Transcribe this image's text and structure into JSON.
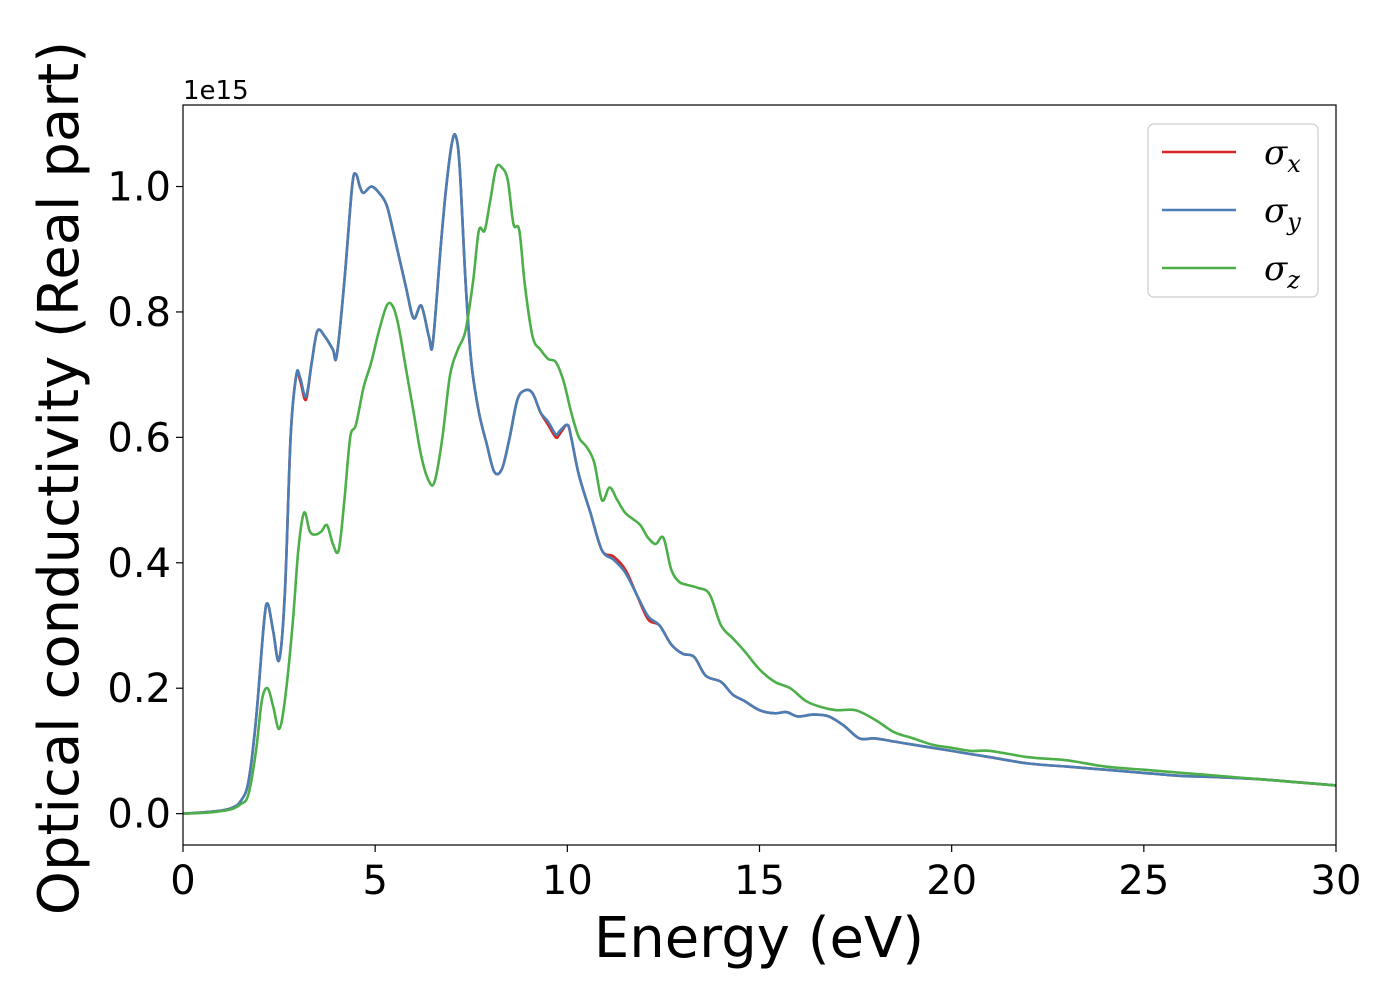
{
  "chart_data": {
    "type": "line",
    "title": "",
    "xlabel": "Energy (eV)",
    "ylabel": "Optical conductivity (Real part)",
    "y_offset_label": "1e15",
    "xlim": [
      0,
      30
    ],
    "ylim": [
      -0.05,
      1.13
    ],
    "xticks": [
      0,
      5,
      10,
      15,
      20,
      25,
      30
    ],
    "xtick_labels": [
      "0",
      "5",
      "10",
      "15",
      "20",
      "25",
      "30"
    ],
    "yticks": [
      0.0,
      0.2,
      0.4,
      0.6,
      0.8,
      1.0
    ],
    "ytick_labels": [
      "0.0",
      "0.2",
      "0.4",
      "0.6",
      "0.8",
      "1.0"
    ],
    "grid": false,
    "legend_position": "top-right",
    "series": [
      {
        "name": "σx",
        "legend_symbol": "σ",
        "legend_subscript": "x",
        "color": "#d62728",
        "x": [
          0,
          0.5,
          1,
          1.3,
          1.5,
          1.7,
          1.9,
          2.1,
          2.2,
          2.35,
          2.5,
          2.65,
          2.8,
          2.95,
          3.05,
          3.2,
          3.35,
          3.5,
          3.7,
          3.9,
          4.0,
          4.2,
          4.4,
          4.5,
          4.6,
          4.7,
          4.9,
          5.1,
          5.3,
          5.5,
          5.8,
          6.0,
          6.2,
          6.4,
          6.5,
          6.7,
          6.85,
          7.0,
          7.1,
          7.2,
          7.35,
          7.5,
          7.7,
          7.9,
          8.1,
          8.3,
          8.5,
          8.7,
          8.9,
          9.1,
          9.3,
          9.5,
          9.7,
          9.8,
          10.0,
          10.1,
          10.3,
          10.6,
          10.9,
          11.2,
          11.5,
          11.8,
          12.1,
          12.4,
          12.7,
          13.0,
          13.3,
          13.6,
          14.0,
          14.3,
          14.6,
          15.0,
          15.4,
          15.7,
          16.0,
          16.4,
          16.8,
          17.2,
          17.6,
          18.0,
          18.5,
          19.0,
          19.5,
          20.0,
          20.5,
          21.0,
          22.0,
          23.0,
          24.0,
          25.0,
          26.0,
          27.0,
          28.0,
          29.0,
          30.0
        ],
        "y": [
          0,
          0.002,
          0.005,
          0.01,
          0.02,
          0.05,
          0.15,
          0.3,
          0.335,
          0.29,
          0.245,
          0.35,
          0.6,
          0.7,
          0.69,
          0.66,
          0.72,
          0.77,
          0.76,
          0.74,
          0.73,
          0.85,
          1.0,
          1.02,
          1.0,
          0.99,
          1.0,
          0.99,
          0.97,
          0.92,
          0.84,
          0.79,
          0.81,
          0.76,
          0.75,
          0.9,
          1.0,
          1.07,
          1.08,
          1.03,
          0.85,
          0.72,
          0.64,
          0.59,
          0.545,
          0.55,
          0.6,
          0.66,
          0.675,
          0.67,
          0.64,
          0.62,
          0.6,
          0.605,
          0.62,
          0.6,
          0.54,
          0.48,
          0.42,
          0.41,
          0.39,
          0.35,
          0.31,
          0.3,
          0.27,
          0.255,
          0.25,
          0.22,
          0.21,
          0.19,
          0.18,
          0.165,
          0.16,
          0.162,
          0.155,
          0.158,
          0.155,
          0.14,
          0.12,
          0.12,
          0.115,
          0.11,
          0.105,
          0.1,
          0.095,
          0.09,
          0.08,
          0.075,
          0.07,
          0.065,
          0.06,
          0.058,
          0.055,
          0.05,
          0.045
        ]
      },
      {
        "name": "σy",
        "legend_symbol": "σ",
        "legend_subscript": "y",
        "color": "#4a7fb5",
        "x": [
          0,
          0.5,
          1,
          1.3,
          1.5,
          1.7,
          1.9,
          2.1,
          2.2,
          2.35,
          2.5,
          2.65,
          2.8,
          2.95,
          3.05,
          3.2,
          3.35,
          3.5,
          3.7,
          3.9,
          4.0,
          4.2,
          4.4,
          4.5,
          4.6,
          4.7,
          4.9,
          5.1,
          5.3,
          5.5,
          5.8,
          6.0,
          6.2,
          6.4,
          6.5,
          6.7,
          6.85,
          7.0,
          7.1,
          7.2,
          7.35,
          7.5,
          7.7,
          7.9,
          8.1,
          8.3,
          8.5,
          8.7,
          8.9,
          9.1,
          9.3,
          9.5,
          9.7,
          9.8,
          10.0,
          10.1,
          10.3,
          10.6,
          10.9,
          11.2,
          11.5,
          11.8,
          12.1,
          12.4,
          12.7,
          13.0,
          13.3,
          13.6,
          14.0,
          14.3,
          14.6,
          15.0,
          15.4,
          15.7,
          16.0,
          16.4,
          16.8,
          17.2,
          17.6,
          18.0,
          18.5,
          19.0,
          19.5,
          20.0,
          20.5,
          21.0,
          22.0,
          23.0,
          24.0,
          25.0,
          26.0,
          27.0,
          28.0,
          29.0,
          30.0
        ],
        "y": [
          0,
          0.002,
          0.005,
          0.01,
          0.02,
          0.05,
          0.15,
          0.3,
          0.335,
          0.29,
          0.245,
          0.35,
          0.6,
          0.7,
          0.695,
          0.665,
          0.72,
          0.77,
          0.76,
          0.74,
          0.73,
          0.85,
          1.0,
          1.02,
          1.0,
          0.99,
          1.0,
          0.99,
          0.97,
          0.92,
          0.84,
          0.79,
          0.81,
          0.76,
          0.75,
          0.9,
          1.0,
          1.07,
          1.08,
          1.03,
          0.85,
          0.72,
          0.64,
          0.59,
          0.545,
          0.55,
          0.6,
          0.66,
          0.675,
          0.67,
          0.64,
          0.625,
          0.605,
          0.61,
          0.62,
          0.6,
          0.54,
          0.48,
          0.42,
          0.405,
          0.385,
          0.35,
          0.315,
          0.3,
          0.27,
          0.255,
          0.25,
          0.22,
          0.21,
          0.19,
          0.18,
          0.165,
          0.16,
          0.162,
          0.155,
          0.158,
          0.155,
          0.14,
          0.12,
          0.12,
          0.115,
          0.11,
          0.105,
          0.1,
          0.095,
          0.09,
          0.08,
          0.075,
          0.07,
          0.065,
          0.06,
          0.058,
          0.055,
          0.05,
          0.045
        ]
      },
      {
        "name": "σz",
        "legend_symbol": "σ",
        "legend_subscript": "z",
        "color": "#4daf4a",
        "x": [
          0,
          0.5,
          1,
          1.3,
          1.5,
          1.7,
          1.9,
          2.05,
          2.2,
          2.35,
          2.5,
          2.65,
          2.85,
          3.0,
          3.15,
          3.3,
          3.45,
          3.6,
          3.75,
          3.9,
          4.05,
          4.2,
          4.35,
          4.5,
          4.7,
          4.9,
          5.1,
          5.3,
          5.45,
          5.6,
          5.8,
          6.0,
          6.2,
          6.4,
          6.55,
          6.75,
          6.95,
          7.15,
          7.35,
          7.55,
          7.7,
          7.85,
          8.0,
          8.15,
          8.3,
          8.45,
          8.6,
          8.75,
          8.9,
          9.1,
          9.3,
          9.5,
          9.7,
          9.9,
          10.1,
          10.3,
          10.5,
          10.7,
          10.9,
          11.1,
          11.3,
          11.5,
          11.7,
          11.9,
          12.1,
          12.3,
          12.5,
          12.7,
          12.9,
          13.1,
          13.4,
          13.7,
          14.0,
          14.3,
          14.6,
          15.0,
          15.4,
          15.8,
          16.2,
          16.6,
          17.0,
          17.5,
          18.0,
          18.5,
          19.0,
          19.5,
          20.0,
          20.5,
          21.0,
          22.0,
          23.0,
          24.0,
          25.0,
          26.0,
          27.0,
          28.0,
          29.0,
          30.0
        ],
        "y": [
          0,
          0.001,
          0.004,
          0.008,
          0.015,
          0.03,
          0.1,
          0.18,
          0.2,
          0.17,
          0.135,
          0.18,
          0.3,
          0.42,
          0.48,
          0.45,
          0.445,
          0.45,
          0.46,
          0.43,
          0.42,
          0.5,
          0.6,
          0.62,
          0.68,
          0.72,
          0.77,
          0.81,
          0.81,
          0.78,
          0.71,
          0.64,
          0.57,
          0.53,
          0.53,
          0.6,
          0.7,
          0.74,
          0.77,
          0.85,
          0.93,
          0.93,
          0.98,
          1.03,
          1.03,
          1.01,
          0.94,
          0.93,
          0.84,
          0.76,
          0.74,
          0.725,
          0.72,
          0.69,
          0.64,
          0.6,
          0.585,
          0.56,
          0.5,
          0.52,
          0.5,
          0.48,
          0.47,
          0.46,
          0.44,
          0.43,
          0.44,
          0.39,
          0.37,
          0.365,
          0.36,
          0.35,
          0.3,
          0.28,
          0.26,
          0.23,
          0.21,
          0.2,
          0.18,
          0.17,
          0.165,
          0.165,
          0.15,
          0.13,
          0.12,
          0.11,
          0.105,
          0.1,
          0.1,
          0.09,
          0.085,
          0.075,
          0.07,
          0.065,
          0.06,
          0.055,
          0.05,
          0.045
        ]
      }
    ]
  }
}
